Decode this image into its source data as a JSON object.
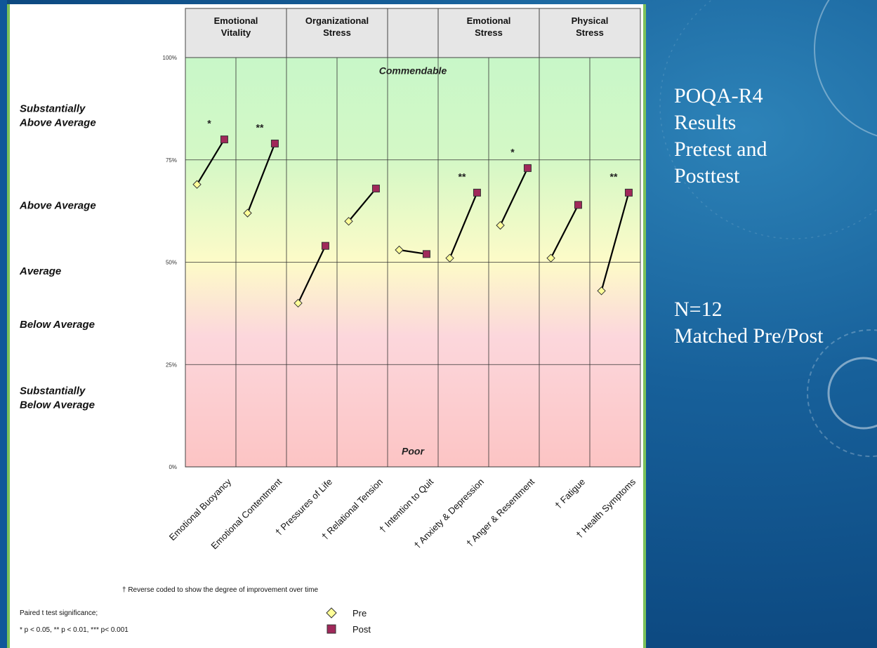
{
  "slide": {
    "title_lines": [
      "POQA-R4",
      "Results",
      "Pretest and",
      "Posttest"
    ],
    "n_lines": [
      "N=12",
      "Matched Pre/Post"
    ]
  },
  "chart_data": {
    "type": "line",
    "ylim": [
      0,
      100
    ],
    "y_ticks": [
      "0%",
      "25%",
      "50%",
      "75%",
      "100%"
    ],
    "categories": [
      "Emotional Buoyancy",
      "Emotional Contentment",
      "† Pressures of Life",
      "† Relational Tension",
      "† Intention to Quit",
      "† Anxiety & Depression",
      "† Anger & Resentment",
      "† Fatigue",
      "† Health Symptoms"
    ],
    "groups": [
      {
        "label": "Emotional Vitality",
        "start": 0,
        "span": 2
      },
      {
        "label": "Organizational Stress",
        "start": 2,
        "span": 2
      },
      {
        "label": "",
        "start": 4,
        "span": 1
      },
      {
        "label": "Emotional Stress",
        "start": 5,
        "span": 2
      },
      {
        "label": "Physical Stress",
        "start": 7,
        "span": 2
      }
    ],
    "series": [
      {
        "name": "Pre",
        "values": [
          69,
          62,
          40,
          60,
          53,
          51,
          59,
          51,
          43
        ],
        "color": "#ffff99",
        "marker": "diamond"
      },
      {
        "name": "Post",
        "values": [
          80,
          79,
          54,
          68,
          52,
          67,
          73,
          64,
          67
        ],
        "color": "#a0285a",
        "marker": "square"
      }
    ],
    "significance": [
      "*",
      "**",
      "",
      "",
      "",
      "**",
      "*",
      "",
      "**"
    ],
    "bands": [
      {
        "label": "Substantially Above Average",
        "center": 85
      },
      {
        "label": "Above Average",
        "center": 63
      },
      {
        "label": "Average",
        "center": 47
      },
      {
        "label": "Below Average",
        "center": 34
      },
      {
        "label": "Substantially Below Average",
        "center": 16
      }
    ],
    "zone_labels": {
      "top": "Commendable",
      "bottom": "Poor"
    },
    "footnote": "† Reverse coded to show the degree of improvement over time",
    "significance_note": [
      "Paired t test significance;",
      "* p < 0.05, ** p < 0.01, *** p< 0.001"
    ],
    "legend": {
      "position": "bottom-center",
      "entries": [
        "Pre",
        "Post"
      ]
    },
    "colors": {
      "green_zone": "#c8f7c8",
      "yellow_zone": "#fdfbc8",
      "pink_zone": "#fcd7dc",
      "red_zone": "#fcc4c4",
      "header_bg": "#e6e6e6"
    }
  }
}
